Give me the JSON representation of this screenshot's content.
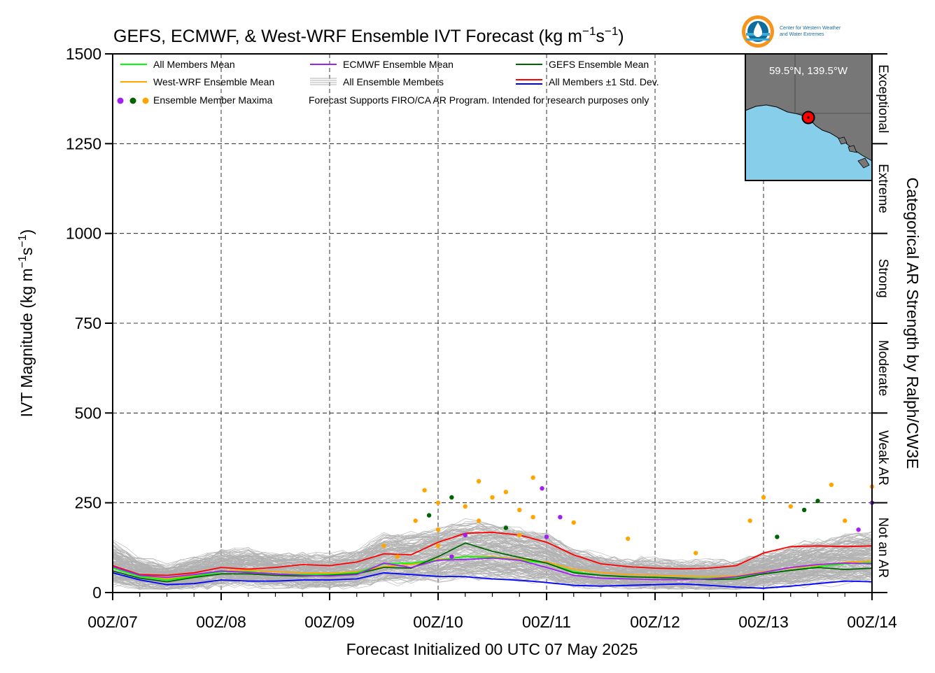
{
  "chart_data": {
    "type": "line",
    "title": "GEFS, ECMWF, & West-WRF Ensemble IVT Forecast (kg m⁻¹s⁻¹)",
    "title_parts": {
      "main": "GEFS, ECMWF, & West-WRF Ensemble IVT Forecast (kg m",
      "exp1": "−1",
      "mid": "s",
      "exp2": "−1",
      "end": ")"
    },
    "ylabel": "IVT Magnitude (kg m⁻¹s⁻¹)",
    "ylabel_parts": {
      "main": "IVT Magnitude (kg m",
      "exp1": "−1",
      "mid": "s",
      "exp2": "−1",
      "end": ")"
    },
    "xlabel": "Forecast Initialized 00 UTC 07 May 2025",
    "right_label": "Categorical AR Strength by Ralph/CW3E",
    "ylim": [
      0,
      1500
    ],
    "xlim": [
      0,
      168
    ],
    "yticks": [
      0,
      250,
      500,
      750,
      1000,
      1250,
      1500
    ],
    "x_tick_labels": [
      "00Z/07",
      "00Z/08",
      "00Z/09",
      "00Z/10",
      "00Z/11",
      "00Z/12",
      "00Z/13",
      "00Z/14"
    ],
    "x_tick_hours": [
      0,
      24,
      48,
      72,
      96,
      120,
      144,
      168
    ],
    "grid": true,
    "categories_ar": [
      {
        "label": "Not an AR",
        "from": 0,
        "to": 250
      },
      {
        "label": "Weak AR",
        "from": 250,
        "to": 500
      },
      {
        "label": "Moderate",
        "from": 500,
        "to": 750
      },
      {
        "label": "Strong",
        "from": 750,
        "to": 1000
      },
      {
        "label": "Extreme",
        "from": 1000,
        "to": 1250
      },
      {
        "label": "Exceptional",
        "from": 1250,
        "to": 1500
      }
    ],
    "legend": {
      "placement": "top",
      "items": [
        {
          "label": "All Members Mean",
          "color": "#00ff00"
        },
        {
          "label": "ECMWF Ensemble Mean",
          "color": "#a020f0"
        },
        {
          "label": "GEFS Ensemble Mean",
          "color": "#006400"
        },
        {
          "label": "West-WRF Ensemble Mean",
          "color": "#ffa500"
        },
        {
          "label": "All Ensemble Members",
          "color": "#b0b0b0"
        },
        {
          "label": "All Members ±1 Std. Dev.",
          "color": "#ff0000",
          "color2": "#0000ff"
        },
        {
          "label": "Ensemble Member Maxima",
          "color": "#a020f0"
        }
      ],
      "note": "Forecast Supports FIRO/CA AR Program. Intended for research purposes only"
    },
    "inset_map": {
      "label": "59.5°N, 139.5°W",
      "ocean_color": "#87ceeb",
      "land_color": "#777777"
    },
    "logo": {
      "text_line1": "Center for Western Weather",
      "text_line2": "and Water Extremes"
    },
    "series": [
      {
        "name": "All Members Mean",
        "color": "#00ff00",
        "x": [
          0,
          6,
          12,
          18,
          24,
          30,
          36,
          42,
          48,
          54,
          60,
          66,
          72,
          78,
          84,
          90,
          96,
          102,
          108,
          114,
          120,
          126,
          132,
          138,
          144,
          150,
          156,
          162,
          168
        ],
        "y": [
          68,
          45,
          35,
          45,
          58,
          58,
          52,
          50,
          50,
          55,
          80,
          82,
          90,
          100,
          98,
          90,
          82,
          58,
          48,
          43,
          43,
          40,
          40,
          42,
          52,
          62,
          72,
          80,
          84
        ]
      },
      {
        "name": "ECMWF Ensemble Mean",
        "color": "#a020f0",
        "x": [
          0,
          6,
          12,
          18,
          24,
          30,
          36,
          42,
          48,
          54,
          60,
          66,
          72,
          78,
          84,
          90,
          96,
          102,
          108,
          114,
          120,
          126,
          132,
          138,
          144,
          150,
          156,
          162,
          168
        ],
        "y": [
          72,
          48,
          42,
          50,
          60,
          56,
          52,
          48,
          46,
          50,
          82,
          70,
          90,
          92,
          96,
          90,
          70,
          48,
          40,
          38,
          36,
          36,
          38,
          44,
          56,
          70,
          78,
          82,
          80
        ]
      },
      {
        "name": "GEFS Ensemble Mean",
        "color": "#006400",
        "x": [
          0,
          6,
          12,
          18,
          24,
          30,
          36,
          42,
          48,
          54,
          60,
          66,
          72,
          78,
          84,
          90,
          96,
          102,
          108,
          114,
          120,
          126,
          132,
          138,
          144,
          150,
          156,
          162,
          168
        ],
        "y": [
          60,
          40,
          30,
          42,
          52,
          52,
          48,
          46,
          48,
          52,
          70,
          68,
          100,
          138,
          115,
          98,
          82,
          55,
          48,
          44,
          42,
          40,
          36,
          38,
          52,
          62,
          70,
          64,
          68
        ]
      },
      {
        "name": "West-WRF Ensemble Mean",
        "color": "#ffa500",
        "x": [
          0,
          6,
          12,
          18,
          24,
          30,
          36,
          42,
          48,
          54,
          60,
          66,
          72,
          78,
          84,
          90,
          96,
          102,
          108,
          114,
          120,
          126,
          132,
          138,
          144,
          150,
          156,
          162,
          168
        ],
        "y": [
          70,
          48,
          38,
          48,
          60,
          62,
          58,
          55,
          54,
          58,
          72,
          78,
          92,
          100,
          100,
          92,
          85,
          65,
          56,
          50,
          48,
          46,
          44,
          46,
          58,
          68,
          76,
          84,
          88
        ]
      },
      {
        "name": "All Members ±1 Std. Dev.",
        "color": "#ff0000",
        "x": [
          0,
          6,
          12,
          18,
          24,
          30,
          36,
          42,
          48,
          54,
          60,
          66,
          72,
          78,
          84,
          90,
          96,
          102,
          108,
          114,
          120,
          126,
          132,
          138,
          144,
          150,
          156,
          162,
          168
        ],
        "y": [
          75,
          50,
          48,
          55,
          70,
          65,
          70,
          78,
          75,
          85,
          108,
          105,
          140,
          165,
          168,
          160,
          140,
          105,
          80,
          72,
          68,
          66,
          68,
          75,
          110,
          128,
          130,
          128,
          130
        ]
      },
      {
        "name": "All Members ±1 Std. Dev.",
        "color": "#0000ff",
        "x": [
          0,
          6,
          12,
          18,
          24,
          30,
          36,
          42,
          48,
          54,
          60,
          66,
          72,
          78,
          84,
          90,
          96,
          102,
          108,
          114,
          120,
          126,
          132,
          138,
          144,
          150,
          156,
          162,
          168
        ],
        "y": [
          55,
          35,
          22,
          25,
          35,
          32,
          32,
          35,
          35,
          38,
          55,
          50,
          45,
          44,
          38,
          34,
          28,
          20,
          18,
          20,
          22,
          24,
          20,
          15,
          12,
          18,
          25,
          32,
          30
        ]
      }
    ],
    "ensemble_members": {
      "count": 160,
      "color": "#b0b0b0"
    },
    "member_maxima": [
      {
        "x": 60,
        "y": 130,
        "color": "#ffa500"
      },
      {
        "x": 63,
        "y": 100,
        "color": "#ffa500"
      },
      {
        "x": 67,
        "y": 200,
        "color": "#ffa500"
      },
      {
        "x": 69,
        "y": 285,
        "color": "#ffa500"
      },
      {
        "x": 70,
        "y": 215,
        "color": "#006400"
      },
      {
        "x": 72,
        "y": 250,
        "color": "#ffa500"
      },
      {
        "x": 72,
        "y": 175,
        "color": "#ffa500"
      },
      {
        "x": 72,
        "y": 130,
        "color": "#ffa500"
      },
      {
        "x": 75,
        "y": 265,
        "color": "#006400"
      },
      {
        "x": 75,
        "y": 100,
        "color": "#a020f0"
      },
      {
        "x": 78,
        "y": 240,
        "color": "#ffa500"
      },
      {
        "x": 78,
        "y": 160,
        "color": "#a020f0"
      },
      {
        "x": 81,
        "y": 310,
        "color": "#ffa500"
      },
      {
        "x": 81,
        "y": 200,
        "color": "#ffa500"
      },
      {
        "x": 84,
        "y": 265,
        "color": "#ffa500"
      },
      {
        "x": 87,
        "y": 280,
        "color": "#ffa500"
      },
      {
        "x": 87,
        "y": 180,
        "color": "#006400"
      },
      {
        "x": 90,
        "y": 230,
        "color": "#ffa500"
      },
      {
        "x": 90,
        "y": 160,
        "color": "#ffa500"
      },
      {
        "x": 93,
        "y": 320,
        "color": "#ffa500"
      },
      {
        "x": 93,
        "y": 210,
        "color": "#ffa500"
      },
      {
        "x": 95,
        "y": 290,
        "color": "#a020f0"
      },
      {
        "x": 96,
        "y": 155,
        "color": "#a020f0"
      },
      {
        "x": 99,
        "y": 210,
        "color": "#a020f0"
      },
      {
        "x": 102,
        "y": 195,
        "color": "#ffa500"
      },
      {
        "x": 114,
        "y": 150,
        "color": "#ffa500"
      },
      {
        "x": 129,
        "y": 110,
        "color": "#ffa500"
      },
      {
        "x": 141,
        "y": 200,
        "color": "#ffa500"
      },
      {
        "x": 144,
        "y": 265,
        "color": "#ffa500"
      },
      {
        "x": 147,
        "y": 155,
        "color": "#006400"
      },
      {
        "x": 150,
        "y": 240,
        "color": "#ffa500"
      },
      {
        "x": 153,
        "y": 230,
        "color": "#006400"
      },
      {
        "x": 156,
        "y": 255,
        "color": "#006400"
      },
      {
        "x": 159,
        "y": 300,
        "color": "#ffa500"
      },
      {
        "x": 162,
        "y": 200,
        "color": "#ffa500"
      },
      {
        "x": 165,
        "y": 175,
        "color": "#a020f0"
      },
      {
        "x": 168,
        "y": 295,
        "color": "#ffa500"
      },
      {
        "x": 168,
        "y": 250,
        "color": "#a020f0"
      }
    ]
  }
}
